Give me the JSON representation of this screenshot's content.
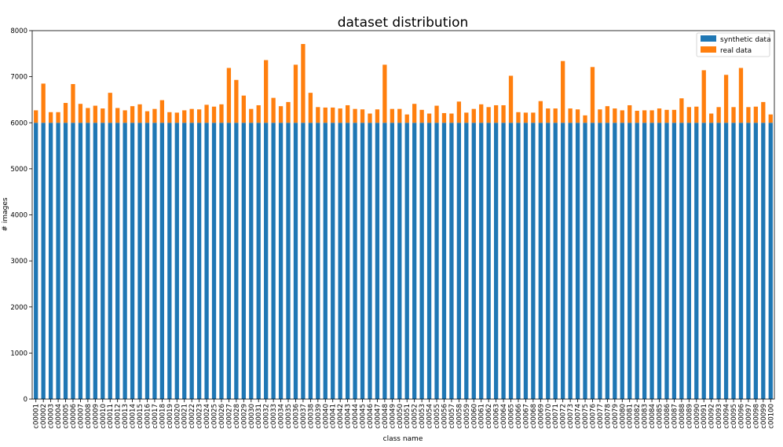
{
  "chart_data": {
    "type": "bar",
    "stacked": true,
    "title": "dataset distribution",
    "xlabel": "class name",
    "ylabel": "# images",
    "ylim": [
      0,
      8000
    ],
    "yticks": [
      0,
      1000,
      2000,
      3000,
      4000,
      5000,
      6000,
      7000,
      8000
    ],
    "grid": false,
    "legend_position": "top-right",
    "categories": [
      "c00001",
      "c00002",
      "c00003",
      "c00004",
      "c00005",
      "c00006",
      "c00007",
      "c00008",
      "c00009",
      "c00010",
      "c00011",
      "c00012",
      "c00013",
      "c00014",
      "c00015",
      "c00016",
      "c00017",
      "c00018",
      "c00019",
      "c00020",
      "c00021",
      "c00022",
      "c00023",
      "c00024",
      "c00025",
      "c00026",
      "c00027",
      "c00028",
      "c00029",
      "c00030",
      "c00031",
      "c00032",
      "c00033",
      "c00034",
      "c00035",
      "c00036",
      "c00037",
      "c00038",
      "c00039",
      "c00040",
      "c00041",
      "c00042",
      "c00043",
      "c00044",
      "c00045",
      "c00046",
      "c00047",
      "c00048",
      "c00049",
      "c00050",
      "c00051",
      "c00052",
      "c00053",
      "c00054",
      "c00055",
      "c00056",
      "c00057",
      "c00058",
      "c00059",
      "c00060",
      "c00061",
      "c00062",
      "c00063",
      "c00064",
      "c00065",
      "c00066",
      "c00067",
      "c00068",
      "c00069",
      "c00070",
      "c00071",
      "c00072",
      "c00073",
      "c00074",
      "c00075",
      "c00076",
      "c00077",
      "c00078",
      "c00079",
      "c00080",
      "c00081",
      "c00082",
      "c00083",
      "c00084",
      "c00085",
      "c00086",
      "c00087",
      "c00088",
      "c00089",
      "c00090",
      "c00091",
      "c00092",
      "c00093",
      "c00094",
      "c00095",
      "c00096",
      "c00097",
      "c00098",
      "c00099",
      "c00100"
    ],
    "series": [
      {
        "name": "synthetic data",
        "color": "#1f77b4",
        "values": [
          6000,
          6000,
          6000,
          6000,
          6000,
          6000,
          6000,
          6000,
          6000,
          6000,
          6000,
          6000,
          6000,
          6000,
          6000,
          6000,
          6000,
          6000,
          6000,
          6000,
          6000,
          6000,
          6000,
          6000,
          6000,
          6000,
          6000,
          6000,
          6000,
          6000,
          6000,
          6000,
          6000,
          6000,
          6000,
          6000,
          6000,
          6000,
          6000,
          6000,
          6000,
          6000,
          6000,
          6000,
          6000,
          6000,
          6000,
          6000,
          6000,
          6000,
          6000,
          6000,
          6000,
          6000,
          6000,
          6000,
          6000,
          6000,
          6000,
          6000,
          6000,
          6000,
          6000,
          6000,
          6000,
          6000,
          6000,
          6000,
          6000,
          6000,
          6000,
          6000,
          6000,
          6000,
          6000,
          6000,
          6000,
          6000,
          6000,
          6000,
          6000,
          6000,
          6000,
          6000,
          6000,
          6000,
          6000,
          6000,
          6000,
          6000,
          6000,
          6000,
          6000,
          6000,
          6000,
          6000,
          6000,
          6000,
          6000,
          6000
        ]
      },
      {
        "name": "real data",
        "color": "#ff7f0e",
        "values": [
          270,
          850,
          230,
          230,
          430,
          840,
          410,
          320,
          370,
          310,
          650,
          320,
          270,
          360,
          400,
          250,
          300,
          490,
          230,
          220,
          270,
          300,
          290,
          390,
          350,
          400,
          1190,
          930,
          590,
          300,
          380,
          1360,
          540,
          360,
          450,
          1260,
          1710,
          650,
          340,
          330,
          330,
          310,
          380,
          300,
          290,
          200,
          290,
          1260,
          300,
          300,
          180,
          410,
          280,
          200,
          370,
          210,
          200,
          460,
          220,
          300,
          400,
          340,
          380,
          380,
          1020,
          230,
          220,
          220,
          470,
          310,
          310,
          1340,
          310,
          290,
          160,
          1210,
          290,
          360,
          310,
          270,
          380,
          260,
          270,
          270,
          310,
          280,
          280,
          530,
          340,
          350,
          1140,
          200,
          340,
          1040,
          340,
          1190,
          340,
          350,
          450,
          180
        ]
      }
    ]
  }
}
